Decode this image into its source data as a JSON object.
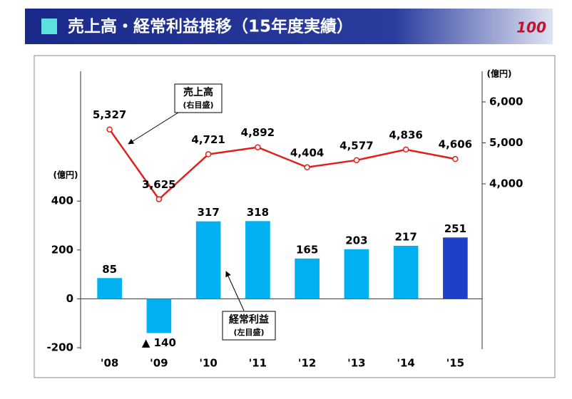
{
  "header": {
    "title": "売上高・経常利益推移（15年度実績）",
    "logo": "100"
  },
  "chart_data": {
    "type": "combo",
    "categories": [
      "'08",
      "'09",
      "'10",
      "'11",
      "'12",
      "'13",
      "'14",
      "'15"
    ],
    "series": [
      {
        "name": "経常利益",
        "type": "bar",
        "axis": "y",
        "values": [
          85,
          -140,
          317,
          318,
          165,
          203,
          217,
          251
        ],
        "value_labels": [
          "85",
          "▲ 140",
          "317",
          "318",
          "165",
          "203",
          "217",
          "251"
        ],
        "colors": [
          "#00b0f0",
          "#00b0f0",
          "#00b0f0",
          "#00b0f0",
          "#00b0f0",
          "#00b0f0",
          "#00b0f0",
          "#1f3fc8"
        ]
      },
      {
        "name": "売上高",
        "type": "line",
        "axis": "y2",
        "color": "#e0201c",
        "values": [
          5327,
          3625,
          4721,
          4892,
          4404,
          4577,
          4836,
          4606
        ],
        "value_labels": [
          "5,327",
          "3,625",
          "4,721",
          "4,892",
          "4,404",
          "4,577",
          "4,836",
          "4,606"
        ]
      }
    ],
    "ylim": [
      -200,
      940
    ],
    "yticks": [
      -200,
      0,
      200,
      400
    ],
    "y2lim": [
      0,
      6800
    ],
    "y2ticks": [
      {
        "value": 4000,
        "label": "4,000"
      },
      {
        "value": 5000,
        "label": "5,000"
      },
      {
        "value": 6000,
        "label": "6,000"
      }
    ],
    "y_unit": "(億円)",
    "y2_unit": "(億円)",
    "annotations": [
      "(右目盛)",
      "(左目盛)"
    ]
  }
}
